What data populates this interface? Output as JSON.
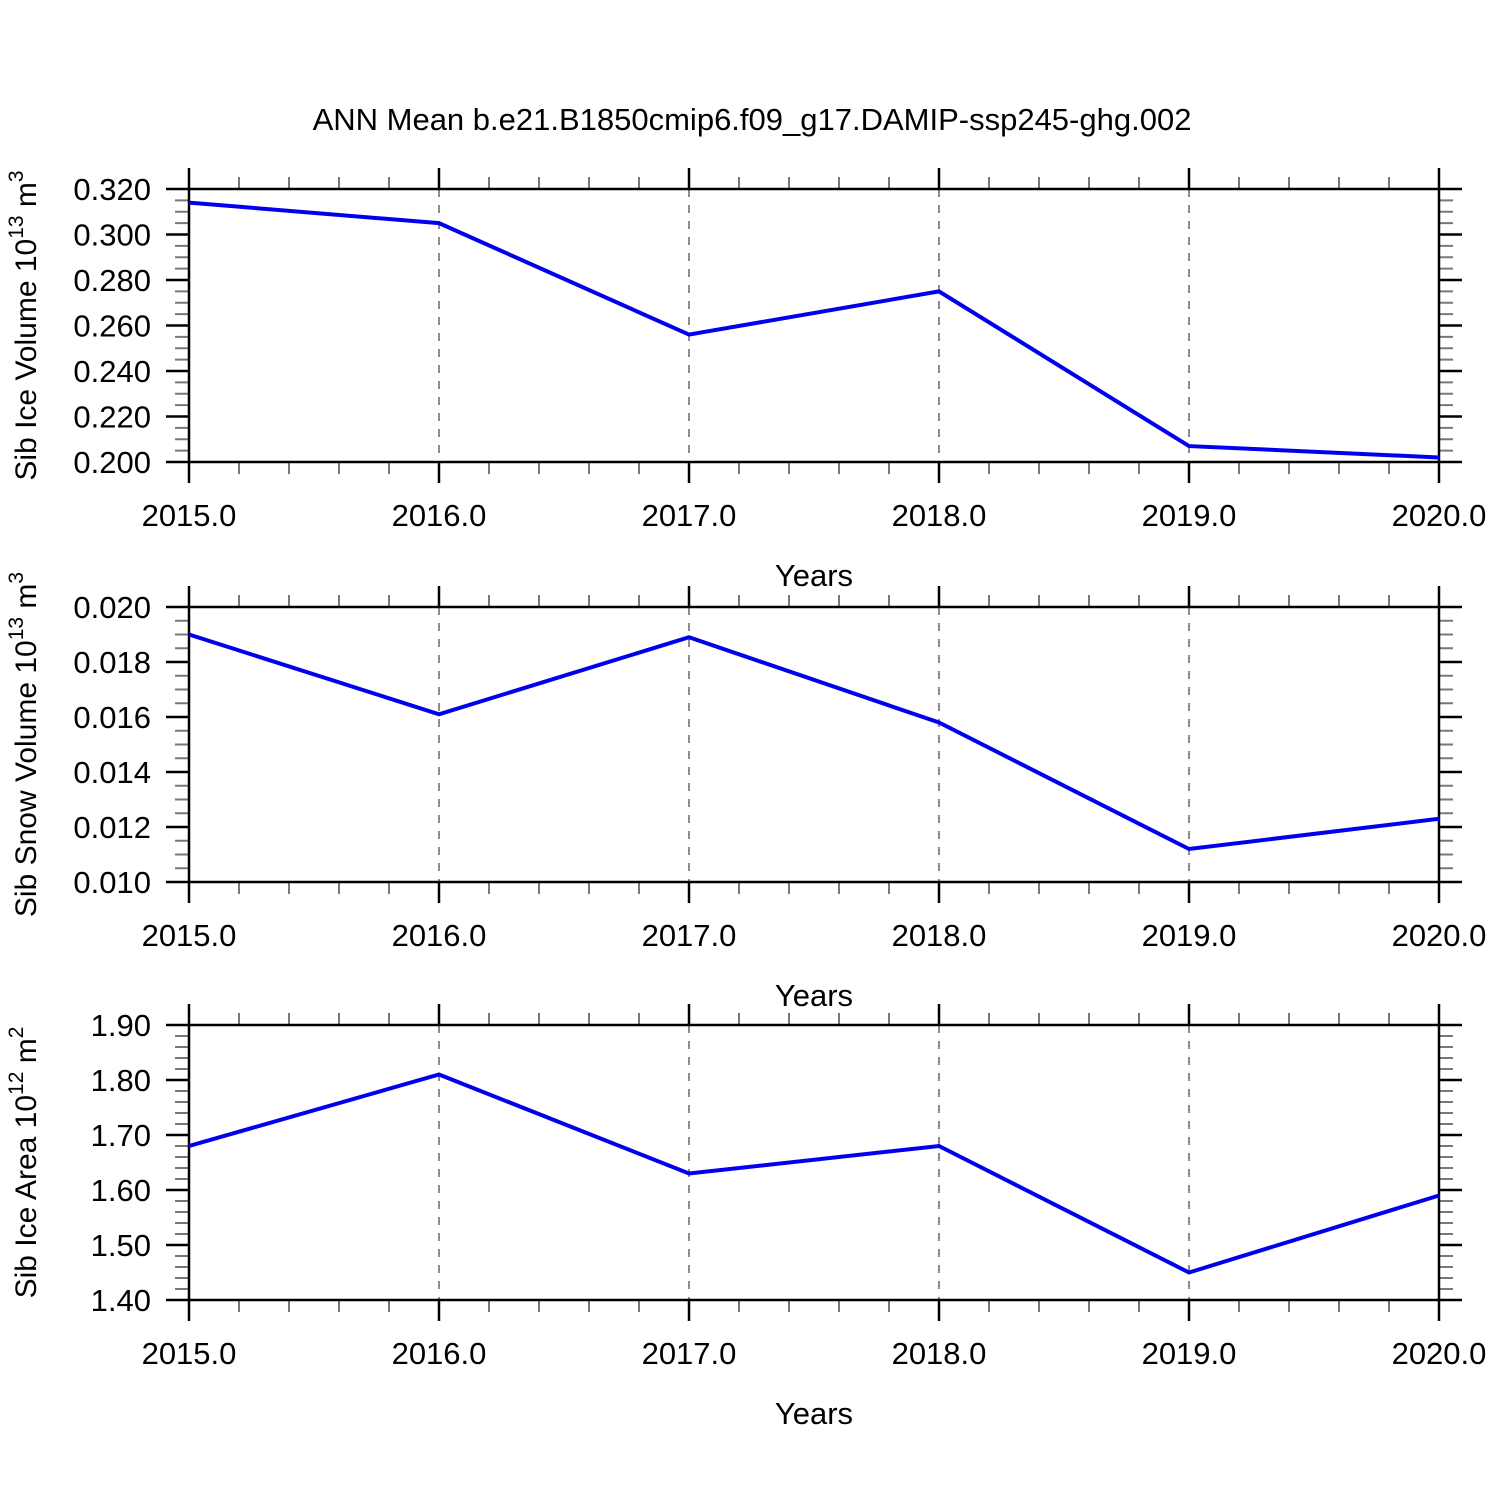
{
  "title": "ANN Mean b.e21.B1850cmip6.f09_g17.DAMIP-ssp245-ghg.002",
  "colors": {
    "line": "#0000ee",
    "frame": "#000000",
    "major_tick": "#000000",
    "minor_tick": "#777777",
    "gridline": "#666666",
    "text": "#000000",
    "background": "#ffffff"
  },
  "x_axis": {
    "label": "Years",
    "ticks": [
      2015,
      2016,
      2017,
      2018,
      2019,
      2020
    ],
    "tick_labels": [
      "2015.0",
      "2016.0",
      "2017.0",
      "2018.0",
      "2019.0",
      "2020.0"
    ],
    "minor_step": 0.2,
    "range": [
      2015,
      2020
    ],
    "gridline_years": [
      2016,
      2017,
      2018,
      2019
    ]
  },
  "chart_data": [
    {
      "type": "line",
      "title": "",
      "ylabel": "Sib Ice Volume 10^13 m^3",
      "ylabel_parts": [
        {
          "text": "Sib Ice Volume 10"
        },
        {
          "text": "13",
          "sup": true
        },
        {
          "text": " m"
        },
        {
          "text": "3",
          "sup": true
        }
      ],
      "xlabel": "Years",
      "x": [
        2015,
        2016,
        2017,
        2018,
        2019,
        2020
      ],
      "values": [
        0.314,
        0.305,
        0.256,
        0.275,
        0.207,
        0.202
      ],
      "ylim": [
        0.2,
        0.32
      ],
      "yticks": [
        0.2,
        0.22,
        0.24,
        0.26,
        0.28,
        0.3,
        0.32
      ],
      "ytick_labels": [
        "0.200",
        "0.220",
        "0.240",
        "0.260",
        "0.280",
        "0.300",
        "0.320"
      ],
      "yminor_step": 0.005,
      "xtick_labels": [
        "2015.0",
        "2016.0",
        "2017.0",
        "2018.0",
        "2019.0",
        "2020.0"
      ],
      "grid_years": [
        2016,
        2017,
        2018,
        2019
      ],
      "grid": "vertical-dashed",
      "legend": "none"
    },
    {
      "type": "line",
      "title": "",
      "ylabel": "Sib Snow Volume 10^13 m^3",
      "ylabel_parts": [
        {
          "text": "Sib Snow Volume 10"
        },
        {
          "text": "13",
          "sup": true
        },
        {
          "text": " m"
        },
        {
          "text": "3",
          "sup": true
        }
      ],
      "xlabel": "Years",
      "x": [
        2015,
        2016,
        2017,
        2018,
        2019,
        2020
      ],
      "values": [
        0.019,
        0.0161,
        0.0189,
        0.0158,
        0.0112,
        0.0123
      ],
      "ylim": [
        0.01,
        0.02
      ],
      "yticks": [
        0.01,
        0.012,
        0.014,
        0.016,
        0.018,
        0.02
      ],
      "ytick_labels": [
        "0.010",
        "0.012",
        "0.014",
        "0.016",
        "0.018",
        "0.020"
      ],
      "yminor_step": 0.0005,
      "xtick_labels": [
        "2015.0",
        "2016.0",
        "2017.0",
        "2018.0",
        "2019.0",
        "2020.0"
      ],
      "grid_years": [
        2016,
        2017,
        2018,
        2019
      ],
      "grid": "vertical-dashed",
      "legend": "none"
    },
    {
      "type": "line",
      "title": "",
      "ylabel": "Sib Ice Area 10^12 m^2",
      "ylabel_parts": [
        {
          "text": "Sib Ice Area 10"
        },
        {
          "text": "12",
          "sup": true
        },
        {
          "text": " m"
        },
        {
          "text": "2",
          "sup": true
        }
      ],
      "xlabel": "Years",
      "x": [
        2015,
        2016,
        2017,
        2018,
        2019,
        2020
      ],
      "values": [
        1.68,
        1.81,
        1.63,
        1.68,
        1.45,
        1.59
      ],
      "ylim": [
        1.4,
        1.9
      ],
      "yticks": [
        1.4,
        1.5,
        1.6,
        1.7,
        1.8,
        1.9
      ],
      "ytick_labels": [
        "1.40",
        "1.50",
        "1.60",
        "1.70",
        "1.80",
        "1.90"
      ],
      "yminor_step": 0.02,
      "xtick_labels": [
        "2015.0",
        "2016.0",
        "2017.0",
        "2018.0",
        "2019.0",
        "2020.0"
      ],
      "grid_years": [
        2016,
        2017,
        2018,
        2019
      ],
      "grid": "vertical-dashed",
      "legend": "none"
    }
  ]
}
